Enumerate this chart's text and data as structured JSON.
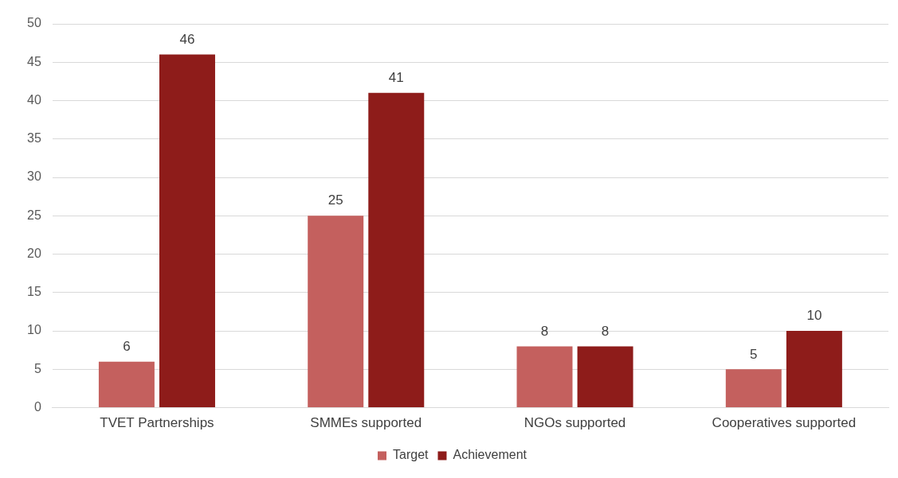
{
  "chart_data": {
    "type": "bar",
    "categories": [
      "TVET Partnerships",
      "SMMEs supported",
      "NGOs supported",
      "Cooperatives supported"
    ],
    "series": [
      {
        "name": "Target",
        "color": "#c4605e",
        "values": [
          6,
          25,
          8,
          5
        ]
      },
      {
        "name": "Achievement",
        "color": "#8e1c1a",
        "values": [
          46,
          41,
          8,
          10
        ]
      }
    ],
    "ylim": [
      0,
      50
    ],
    "yticks": [
      0,
      5,
      10,
      15,
      20,
      25,
      30,
      35,
      40,
      45,
      50
    ],
    "grid": "y",
    "legend": "bottom",
    "data_labels": true
  }
}
